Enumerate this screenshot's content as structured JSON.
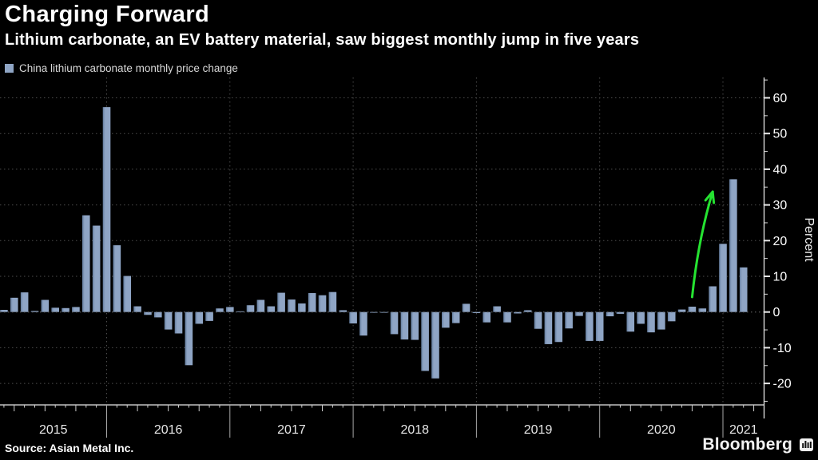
{
  "header": {
    "title": "Charging Forward",
    "subtitle": "Lithium carbonate, an EV battery material, saw biggest monthly jump in five years"
  },
  "legend": {
    "label": "China lithium carbonate monthly price change",
    "swatch_color": "#8fa5c5"
  },
  "footer": {
    "source": "Source: Asian Metal Inc.",
    "brand": "Bloomberg"
  },
  "chart_data": {
    "type": "bar",
    "series_name": "China lithium carbonate monthly price change",
    "title": "Charging Forward",
    "subtitle": "Lithium carbonate, an EV battery material, saw biggest monthly jump in five years",
    "ylabel": "Percent",
    "xlabel": "",
    "start_month": "2015-03",
    "end_month": "2021-03",
    "monthly_values_pct": [
      0.6,
      4.0,
      5.5,
      0.3,
      3.4,
      1.2,
      1.1,
      1.4,
      27.1,
      24.2,
      57.4,
      18.7,
      10.1,
      1.6,
      -0.8,
      -1.5,
      -4.9,
      -6.0,
      -14.9,
      -3.3,
      -2.5,
      1.0,
      1.4,
      0.2,
      1.9,
      3.4,
      1.6,
      5.4,
      3.5,
      2.4,
      5.3,
      4.7,
      5.6,
      0.5,
      -3.2,
      -6.6,
      -0.2,
      -0.2,
      -6.2,
      -7.7,
      -7.8,
      -16.5,
      -18.6,
      -4.4,
      -3.1,
      2.3,
      -0.3,
      -2.9,
      1.6,
      -2.9,
      -0.4,
      0.5,
      -4.7,
      -9.0,
      -8.4,
      -4.6,
      -1.1,
      -8.1,
      -8.1,
      -1.2,
      -0.5,
      -5.5,
      -3.3,
      -5.7,
      -4.9,
      -2.6,
      0.7,
      1.5,
      1.0,
      7.2,
      19.1,
      37.2,
      12.5
    ],
    "y_ticks": [
      60,
      50,
      40,
      30,
      20,
      10,
      0,
      -10,
      -20
    ],
    "y_minor_step": 5,
    "ylim": [
      -26,
      66
    ],
    "x_year_labels": [
      "2015",
      "2016",
      "2017",
      "2018",
      "2019",
      "2020",
      "2021"
    ],
    "legend_position": "top-left",
    "grid": "dashed horizontal every 10 pct, dashed vertical at each January",
    "bar_color": "#8fa5c5",
    "background_color": "#000000",
    "annotation": {
      "type": "arrow",
      "color": "#25e331",
      "points_at": "2021-02",
      "from": {
        "month": "2020-10",
        "value": 4.2
      },
      "to": {
        "month": "2020-12",
        "value": 33.7
      }
    }
  }
}
